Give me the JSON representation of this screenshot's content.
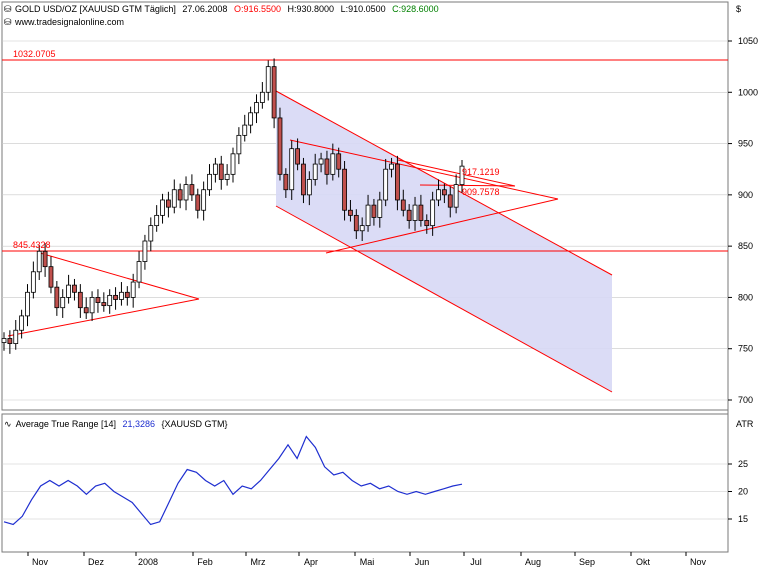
{
  "header": {
    "instrument": "GOLD USD/OZ [XAUUSD GTM  Täglich]",
    "date": "27.06.2008",
    "open_label": "O:916.5500",
    "high_label": "H:930.8000",
    "low_label": "L:910.0500",
    "close_label": "C:928.6000",
    "source": "www.tradesignalonline.com",
    "currency": "$"
  },
  "indicator": {
    "title": "Average True Range [14]",
    "value": "21,3286",
    "symbol": "{XAUUSD GTM}",
    "axis_label": "ATR"
  },
  "colors": {
    "background": "#ffffff",
    "candle_up": "#ffffff",
    "candle_down": "#c0504d",
    "candle_outline": "#000000",
    "trendline": "#ff0000",
    "channel_fill": "#d7d8f5",
    "atr_line": "#1f2fd0",
    "gridline": "#c8c8c8"
  },
  "chart_data": [
    {
      "type": "candlestick",
      "title": "GOLD USD/OZ [XAUUSD GTM  Täglich] 27.06.2008",
      "xlabel": "",
      "ylabel": "$",
      "ylim": [
        690,
        1075
      ],
      "x_tick_labels": [
        "Nov",
        "Dez",
        "2008",
        "Feb",
        "Mrz",
        "Apr",
        "Mai",
        "Jun",
        "Jul",
        "Aug",
        "Sep",
        "Okt",
        "Nov"
      ],
      "y_ticks": [
        700,
        750,
        800,
        850,
        900,
        950,
        1000,
        1050
      ],
      "grid": true,
      "price_levels": [
        {
          "value": 1032.0705,
          "label": "1032.0705"
        },
        {
          "value": 845.4328,
          "label": "845.4328"
        }
      ],
      "line_labels": [
        {
          "value": 917.1219,
          "label": "917.1219"
        },
        {
          "value": 909.7578,
          "label": "909.7578"
        }
      ],
      "close_series": [
        760,
        755,
        768,
        782,
        805,
        825,
        845,
        830,
        810,
        790,
        800,
        812,
        805,
        790,
        785,
        800,
        795,
        792,
        802,
        798,
        805,
        800,
        815,
        835,
        855,
        870,
        880,
        895,
        888,
        905,
        895,
        910,
        900,
        885,
        905,
        920,
        930,
        915,
        920,
        940,
        958,
        968,
        980,
        990,
        1000,
        1025,
        975,
        920,
        905,
        945,
        930,
        900,
        915,
        930,
        935,
        920,
        940,
        925,
        885,
        880,
        865,
        870,
        890,
        878,
        895,
        925,
        930,
        895,
        885,
        875,
        890,
        875,
        870,
        895,
        905,
        900,
        888,
        910,
        928
      ]
    },
    {
      "type": "line",
      "title": "Average True Range [14]",
      "xlabel": "",
      "ylabel": "ATR",
      "ylim": [
        12,
        33
      ],
      "y_ticks": [
        15,
        20,
        25
      ],
      "grid": true,
      "series": [
        {
          "values": [
            14.5,
            14,
            15.5,
            18.5,
            21,
            22,
            21,
            22,
            21,
            19.5,
            21,
            21.5,
            20,
            19,
            18,
            16,
            14,
            14.5,
            18,
            21.5,
            24,
            23.5,
            22,
            21,
            22,
            19.5,
            21,
            20.5,
            22,
            24,
            26,
            28.5,
            26,
            30,
            28,
            24.5,
            23,
            23.5,
            22,
            21,
            21.5,
            20.5,
            21,
            20,
            19.5,
            20,
            19.5,
            20,
            20.5,
            21,
            21.3286
          ]
        }
      ]
    }
  ]
}
